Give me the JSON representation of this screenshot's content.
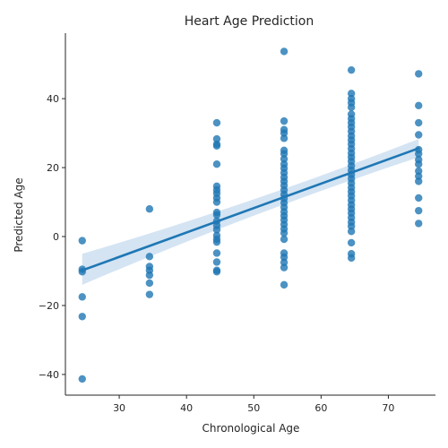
{
  "chart_data": {
    "type": "scatter",
    "title": "Heart Age Prediction",
    "xlabel": "Chronological Age",
    "ylabel": "Predicted Age",
    "xlim": [
      22,
      77
    ],
    "ylim": [
      -46,
      59
    ],
    "xticks": [
      30,
      40,
      50,
      60,
      70
    ],
    "yticks": [
      -40,
      -20,
      0,
      20,
      40
    ],
    "tick_labels_x": [
      "30",
      "40",
      "50",
      "60",
      "70"
    ],
    "tick_labels_y": [
      "−40",
      "−20",
      "0",
      "20",
      "40"
    ],
    "grid": false,
    "point_color": "#1f77b4",
    "line_color": "#1f77b4",
    "band_color": "#c6dbef",
    "regression": {
      "x": [
        24.5,
        74.5
      ],
      "y": [
        -9.8,
        25.6
      ],
      "ci_lower": [
        -14.0,
        23.0
      ],
      "ci_upper": [
        -5.0,
        28.3
      ]
    },
    "points": [
      {
        "x": 24.5,
        "y": -1.2
      },
      {
        "x": 24.5,
        "y": -9.5
      },
      {
        "x": 24.5,
        "y": -10.2
      },
      {
        "x": 24.5,
        "y": -17.5
      },
      {
        "x": 24.5,
        "y": -23.2
      },
      {
        "x": 24.5,
        "y": -41.3
      },
      {
        "x": 34.5,
        "y": 8.0
      },
      {
        "x": 34.5,
        "y": -5.8
      },
      {
        "x": 34.5,
        "y": -8.7
      },
      {
        "x": 34.5,
        "y": -9.8
      },
      {
        "x": 34.5,
        "y": -11.2
      },
      {
        "x": 34.5,
        "y": -13.5
      },
      {
        "x": 34.5,
        "y": -16.8
      },
      {
        "x": 44.5,
        "y": 33.0
      },
      {
        "x": 44.5,
        "y": 28.3
      },
      {
        "x": 44.5,
        "y": 26.8
      },
      {
        "x": 44.5,
        "y": 26.3
      },
      {
        "x": 44.5,
        "y": 21.0
      },
      {
        "x": 44.5,
        "y": 14.6
      },
      {
        "x": 44.5,
        "y": 13.5
      },
      {
        "x": 44.5,
        "y": 12.5
      },
      {
        "x": 44.5,
        "y": 11.2
      },
      {
        "x": 44.5,
        "y": 10.0
      },
      {
        "x": 44.5,
        "y": 7.0
      },
      {
        "x": 44.5,
        "y": 6.3
      },
      {
        "x": 44.5,
        "y": 4.5
      },
      {
        "x": 44.5,
        "y": 3.2
      },
      {
        "x": 44.5,
        "y": 2.0
      },
      {
        "x": 44.5,
        "y": 0.3
      },
      {
        "x": 44.5,
        "y": -0.8
      },
      {
        "x": 44.5,
        "y": -1.6
      },
      {
        "x": 44.5,
        "y": -4.8
      },
      {
        "x": 44.5,
        "y": -7.4
      },
      {
        "x": 44.5,
        "y": -9.8
      },
      {
        "x": 44.5,
        "y": -10.2
      },
      {
        "x": 54.5,
        "y": 53.7
      },
      {
        "x": 54.5,
        "y": 33.5
      },
      {
        "x": 54.5,
        "y": 31.0
      },
      {
        "x": 54.5,
        "y": 30.0
      },
      {
        "x": 54.5,
        "y": 28.5
      },
      {
        "x": 54.5,
        "y": 25.0
      },
      {
        "x": 54.5,
        "y": 24.0
      },
      {
        "x": 54.5,
        "y": 22.5
      },
      {
        "x": 54.5,
        "y": 21.0
      },
      {
        "x": 54.5,
        "y": 19.8
      },
      {
        "x": 54.5,
        "y": 18.5
      },
      {
        "x": 54.5,
        "y": 17.2
      },
      {
        "x": 54.5,
        "y": 16.0
      },
      {
        "x": 54.5,
        "y": 14.8
      },
      {
        "x": 54.5,
        "y": 13.5
      },
      {
        "x": 54.5,
        "y": 12.2
      },
      {
        "x": 54.5,
        "y": 11.0
      },
      {
        "x": 54.5,
        "y": 9.8
      },
      {
        "x": 54.5,
        "y": 8.5
      },
      {
        "x": 54.5,
        "y": 7.2
      },
      {
        "x": 54.5,
        "y": 6.0
      },
      {
        "x": 54.5,
        "y": 4.8
      },
      {
        "x": 54.5,
        "y": 3.5
      },
      {
        "x": 54.5,
        "y": 2.2
      },
      {
        "x": 54.5,
        "y": 1.0
      },
      {
        "x": 54.5,
        "y": -0.8
      },
      {
        "x": 54.5,
        "y": -4.8
      },
      {
        "x": 54.5,
        "y": -6.0
      },
      {
        "x": 54.5,
        "y": -7.5
      },
      {
        "x": 54.5,
        "y": -9.0
      },
      {
        "x": 54.5,
        "y": -14.0
      },
      {
        "x": 64.5,
        "y": 48.3
      },
      {
        "x": 64.5,
        "y": 41.5
      },
      {
        "x": 64.5,
        "y": 40.0
      },
      {
        "x": 64.5,
        "y": 38.8
      },
      {
        "x": 64.5,
        "y": 37.5
      },
      {
        "x": 64.5,
        "y": 35.5
      },
      {
        "x": 64.5,
        "y": 34.2
      },
      {
        "x": 64.5,
        "y": 33.0
      },
      {
        "x": 64.5,
        "y": 31.8
      },
      {
        "x": 64.5,
        "y": 30.5
      },
      {
        "x": 64.5,
        "y": 29.2
      },
      {
        "x": 64.5,
        "y": 28.0
      },
      {
        "x": 64.5,
        "y": 26.8
      },
      {
        "x": 64.5,
        "y": 25.5
      },
      {
        "x": 64.5,
        "y": 24.2
      },
      {
        "x": 64.5,
        "y": 23.0
      },
      {
        "x": 64.5,
        "y": 21.8
      },
      {
        "x": 64.5,
        "y": 20.5
      },
      {
        "x": 64.5,
        "y": 19.2
      },
      {
        "x": 64.5,
        "y": 18.0
      },
      {
        "x": 64.5,
        "y": 16.8
      },
      {
        "x": 64.5,
        "y": 15.5
      },
      {
        "x": 64.5,
        "y": 14.2
      },
      {
        "x": 64.5,
        "y": 13.0
      },
      {
        "x": 64.5,
        "y": 11.8
      },
      {
        "x": 64.5,
        "y": 10.5
      },
      {
        "x": 64.5,
        "y": 9.2
      },
      {
        "x": 64.5,
        "y": 8.0
      },
      {
        "x": 64.5,
        "y": 6.8
      },
      {
        "x": 64.5,
        "y": 5.5
      },
      {
        "x": 64.5,
        "y": 4.2
      },
      {
        "x": 64.5,
        "y": 3.0
      },
      {
        "x": 64.5,
        "y": 1.5
      },
      {
        "x": 64.5,
        "y": -1.8
      },
      {
        "x": 64.5,
        "y": -5.0
      },
      {
        "x": 64.5,
        "y": -6.2
      },
      {
        "x": 74.5,
        "y": 47.2
      },
      {
        "x": 74.5,
        "y": 38.0
      },
      {
        "x": 74.5,
        "y": 33.0
      },
      {
        "x": 74.5,
        "y": 29.5
      },
      {
        "x": 74.5,
        "y": 25.2
      },
      {
        "x": 74.5,
        "y": 24.0
      },
      {
        "x": 74.5,
        "y": 22.3
      },
      {
        "x": 74.5,
        "y": 21.0
      },
      {
        "x": 74.5,
        "y": 19.0
      },
      {
        "x": 74.5,
        "y": 17.5
      },
      {
        "x": 74.5,
        "y": 16.0
      },
      {
        "x": 74.5,
        "y": 11.2
      },
      {
        "x": 74.5,
        "y": 7.5
      },
      {
        "x": 74.5,
        "y": 3.8
      }
    ]
  }
}
